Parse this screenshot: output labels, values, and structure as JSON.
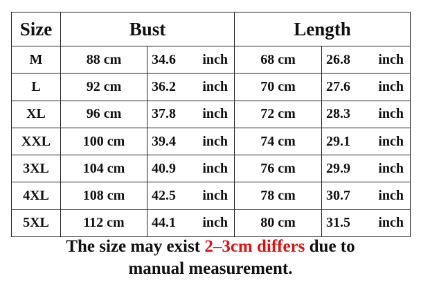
{
  "headers": {
    "size": "Size",
    "bust": "Bust",
    "length": "Length"
  },
  "rows": [
    {
      "size": "M",
      "bust_cm": "88 cm",
      "bust_in": "34.6",
      "length_cm": "68 cm",
      "length_in": "26.8"
    },
    {
      "size": "L",
      "bust_cm": "92 cm",
      "bust_in": "36.2",
      "length_cm": "70 cm",
      "length_in": "27.6"
    },
    {
      "size": "XL",
      "bust_cm": "96 cm",
      "bust_in": "37.8",
      "length_cm": "72 cm",
      "length_in": "28.3"
    },
    {
      "size": "XXL",
      "bust_cm": "100 cm",
      "bust_in": "39.4",
      "length_cm": "74 cm",
      "length_in": "29.1"
    },
    {
      "size": "3XL",
      "bust_cm": "104 cm",
      "bust_in": "40.9",
      "length_cm": "76 cm",
      "length_in": "29.9"
    },
    {
      "size": "4XL",
      "bust_cm": "108 cm",
      "bust_in": "42.5",
      "length_cm": "78 cm",
      "length_in": "30.7"
    },
    {
      "size": "5XL",
      "bust_cm": "112 cm",
      "bust_in": "44.1",
      "length_cm": "80 cm",
      "length_in": "31.5"
    }
  ],
  "unit_inch": "inch",
  "note": {
    "part1": "The size may exist ",
    "highlight": "2–3cm differs",
    "part2": " due to",
    "line2": "manual measurement.",
    "highlight_color": "#e01010"
  }
}
